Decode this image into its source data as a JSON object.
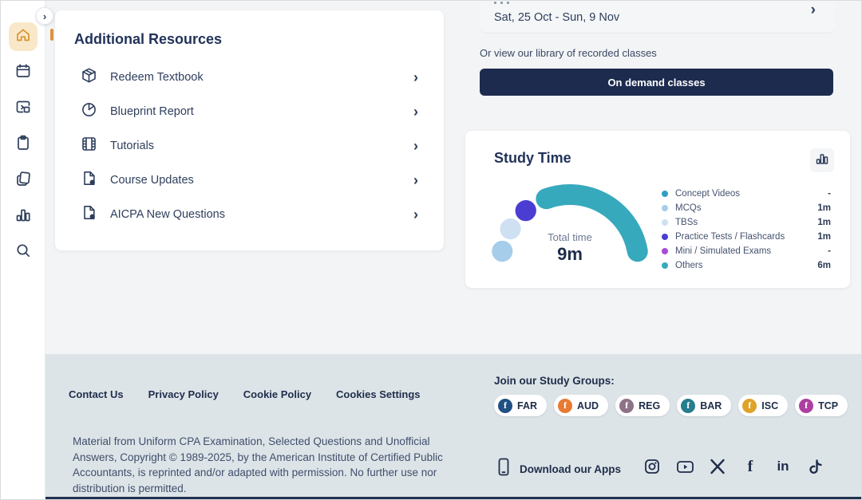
{
  "sidebar": {
    "icons": [
      {
        "name": "home",
        "active": true
      },
      {
        "name": "calendar",
        "active": false
      },
      {
        "name": "resume-session",
        "active": false
      },
      {
        "name": "clipboard",
        "active": false
      },
      {
        "name": "flashcards",
        "active": false
      },
      {
        "name": "stats",
        "active": false
      },
      {
        "name": "search",
        "active": false
      }
    ],
    "expand_chevron": "›"
  },
  "resources_card": {
    "title": "Additional Resources",
    "chevron": "›",
    "items": [
      {
        "label": "Redeem Textbook",
        "icon": "package-icon"
      },
      {
        "label": "Blueprint Report",
        "icon": "pie-chart-icon"
      },
      {
        "label": "Tutorials",
        "icon": "film-icon"
      },
      {
        "label": "Course Updates",
        "icon": "pdf-document-icon"
      },
      {
        "label": "AICPA New Questions",
        "icon": "pdf-document-icon"
      }
    ]
  },
  "schedule": {
    "date_range": "Sat, 25 Oct - Sun, 9 Nov",
    "next_chevron": "›",
    "library_text": "Or view our library of recorded classes",
    "on_demand_button": "On demand classes"
  },
  "study_time": {
    "title": "Study Time",
    "chart_toggle_icon": "bar-chart-icon"
  },
  "chart_data": {
    "type": "donut-gauge",
    "title": "Study Time",
    "center_label": "Total time",
    "center_value": "9m",
    "total_minutes": 9,
    "unit": "minutes",
    "legend_position": "right",
    "segments": [
      {
        "label": "Concept Videos",
        "minutes": 0,
        "display": "-",
        "color": "#2f9fc4"
      },
      {
        "label": "MCQs",
        "minutes": 1,
        "display": "1m",
        "color": "#a6cde9"
      },
      {
        "label": "TBSs",
        "minutes": 1,
        "display": "1m",
        "color": "#cfe0f3"
      },
      {
        "label": "Practice Tests / Flashcards",
        "minutes": 1,
        "display": "1m",
        "color": "#4a3ed2"
      },
      {
        "label": "Mini / Simulated Exams",
        "minutes": 0,
        "display": "-",
        "color": "#ab4ad2"
      },
      {
        "label": "Others",
        "minutes": 6,
        "display": "6m",
        "color": "#37a9bd"
      }
    ]
  },
  "footer": {
    "links": [
      {
        "label": "Contact Us"
      },
      {
        "label": "Privacy Policy"
      },
      {
        "label": "Cookie Policy"
      },
      {
        "label": "Cookies Settings"
      }
    ],
    "copyright": "Material from Uniform CPA Examination, Selected Questions and Unofficial Answers, Copyright © 1989-2025, by the American Institute of Certified Public Accountants, is reprinted and/or adapted with permission. No further use nor distribution is permitted.",
    "study_groups": {
      "heading": "Join our Study Groups:",
      "facebook_glyph": "f",
      "groups": [
        {
          "label": "FAR",
          "color": "#215083"
        },
        {
          "label": "AUD",
          "color": "#e87a33"
        },
        {
          "label": "REG",
          "color": "#8e7287"
        },
        {
          "label": "BAR",
          "color": "#257d8e"
        },
        {
          "label": "ISC",
          "color": "#dfa32a"
        },
        {
          "label": "TCP",
          "color": "#ad3fa0"
        }
      ]
    },
    "apps_label": "Download our Apps",
    "social_icons": [
      "instagram",
      "youtube",
      "x-twitter",
      "facebook",
      "linkedin",
      "tiktok"
    ],
    "facebook_glyph": "f",
    "linkedin_glyph": "in"
  }
}
